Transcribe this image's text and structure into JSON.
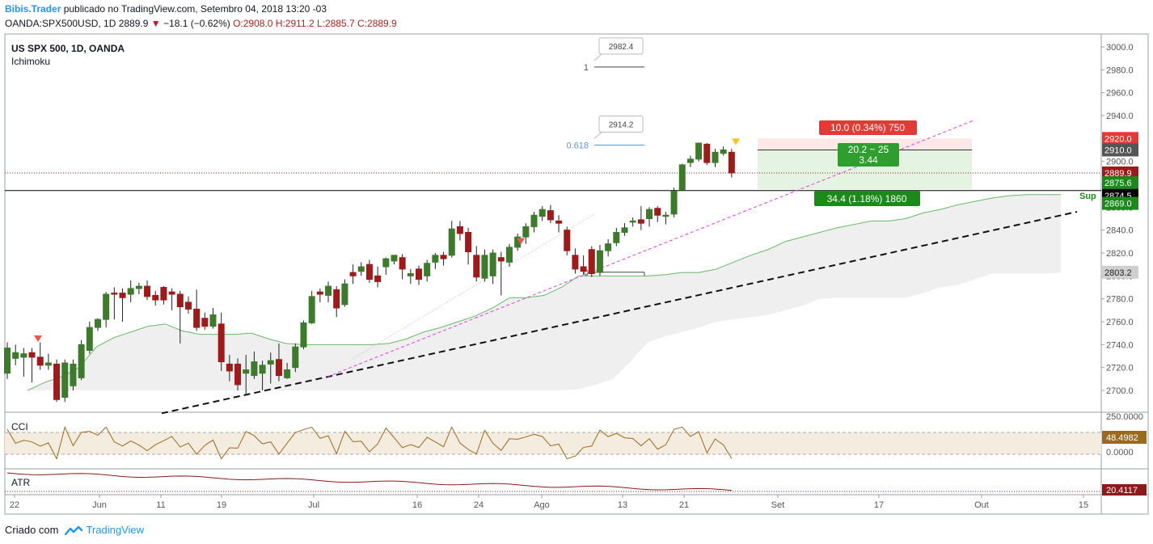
{
  "header": {
    "author": "Bibis.Trader",
    "publication": "publicado no TradingView.com, Setembro 04, 2018 13:20 -03"
  },
  "ticker": {
    "symbol": "OANDA:SPX500USD, 1D",
    "last": "2889.9",
    "change": "−18.1 (−0.62%)",
    "ohlc": "O:2908.0 H:2911.2 L:2885.7 C:2889.9"
  },
  "legend": {
    "title": "US SPX 500, 1D, OANDA",
    "indicator": "Ichimoku"
  },
  "panels": {
    "cci_label": "CCI",
    "atr_label": "ATR",
    "cci_value": "48.4982",
    "cci_axis_top": "250.0000",
    "cci_axis_mid": "0.0000",
    "atr_value": "20.4117"
  },
  "price_labels": {
    "p2920": "2920.0",
    "p2910": "2910.0",
    "p2889": "2889.9",
    "p2875": "2875.6",
    "p2874": "2874.5",
    "p2869": "2869.0",
    "p2803": "2803.2"
  },
  "fib": {
    "level_1": "1",
    "level_0618": "0.618",
    "level_0": "0",
    "box_top": "2982.4",
    "box_mid": "2914.2"
  },
  "position_tool": {
    "target": "10.0 (0.34%) 750",
    "ratio": "20.2 ~ 25",
    "ratio2": "3.44",
    "stop": "34.4 (1.18%) 1860"
  },
  "annotation": {
    "sup": "Sup"
  },
  "footer": {
    "created": "Criado com",
    "brand": "TradingView"
  },
  "colors": {
    "up": "#3d7a2c",
    "down": "#9e1b1b",
    "accent": "#2196f3"
  },
  "chart_data": {
    "type": "candlestick",
    "symbol": "US SPX 500, 1D, OANDA",
    "indicators": [
      "Ichimoku",
      "CCI",
      "ATR"
    ],
    "y_axis": {
      "ticks": [
        2700,
        2720,
        2740,
        2760,
        2780,
        2800,
        2820,
        2840,
        2860,
        2880,
        2900,
        2920,
        2940,
        2960,
        2980,
        3000
      ],
      "range": [
        2690,
        3010
      ]
    },
    "x_axis": {
      "ticks": [
        "22",
        "Jun",
        "11",
        "19",
        "Jul",
        "16",
        "24",
        "Ago",
        "13",
        "21",
        "Set",
        "17",
        "Out",
        "15"
      ]
    },
    "candles": [
      {
        "o": 2715,
        "c": 2737,
        "h": 2742,
        "l": 2710
      },
      {
        "o": 2728,
        "c": 2733,
        "h": 2740,
        "l": 2722
      },
      {
        "o": 2729,
        "c": 2732,
        "h": 2737,
        "l": 2712
      },
      {
        "o": 2733,
        "c": 2729,
        "h": 2737,
        "l": 2707
      },
      {
        "o": 2729,
        "c": 2722,
        "h": 2742,
        "l": 2718
      },
      {
        "o": 2722,
        "c": 2724,
        "h": 2732,
        "l": 2718
      },
      {
        "o": 2723,
        "c": 2692,
        "h": 2727,
        "l": 2690
      },
      {
        "o": 2694,
        "c": 2724,
        "h": 2727,
        "l": 2690
      },
      {
        "o": 2704,
        "c": 2723,
        "h": 2727,
        "l": 2700
      },
      {
        "o": 2711,
        "c": 2740,
        "h": 2744,
        "l": 2709
      },
      {
        "o": 2735,
        "c": 2755,
        "h": 2760,
        "l": 2732
      },
      {
        "o": 2755,
        "c": 2762,
        "h": 2763,
        "l": 2752
      },
      {
        "o": 2762,
        "c": 2784,
        "h": 2786,
        "l": 2755
      },
      {
        "o": 2785,
        "c": 2784,
        "h": 2790,
        "l": 2762
      },
      {
        "o": 2785,
        "c": 2781,
        "h": 2789,
        "l": 2760
      },
      {
        "o": 2784,
        "c": 2789,
        "h": 2796,
        "l": 2777
      },
      {
        "o": 2789,
        "c": 2791,
        "h": 2794,
        "l": 2784
      },
      {
        "o": 2791,
        "c": 2782,
        "h": 2796,
        "l": 2779
      },
      {
        "o": 2783,
        "c": 2779,
        "h": 2787,
        "l": 2774
      },
      {
        "o": 2790,
        "c": 2779,
        "h": 2791,
        "l": 2775
      },
      {
        "o": 2786,
        "c": 2784,
        "h": 2789,
        "l": 2770
      },
      {
        "o": 2784,
        "c": 2773,
        "h": 2787,
        "l": 2741
      },
      {
        "o": 2777,
        "c": 2771,
        "h": 2782,
        "l": 2767
      },
      {
        "o": 2771,
        "c": 2755,
        "h": 2788,
        "l": 2752
      },
      {
        "o": 2763,
        "c": 2756,
        "h": 2768,
        "l": 2753
      },
      {
        "o": 2756,
        "c": 2766,
        "h": 2772,
        "l": 2754
      },
      {
        "o": 2758,
        "c": 2725,
        "h": 2768,
        "l": 2717
      },
      {
        "o": 2723,
        "c": 2717,
        "h": 2731,
        "l": 2708
      },
      {
        "o": 2723,
        "c": 2705,
        "h": 2728,
        "l": 2700
      },
      {
        "o": 2715,
        "c": 2718,
        "h": 2731,
        "l": 2697
      },
      {
        "o": 2713,
        "c": 2725,
        "h": 2734,
        "l": 2710
      },
      {
        "o": 2715,
        "c": 2722,
        "h": 2726,
        "l": 2700
      },
      {
        "o": 2723,
        "c": 2726,
        "h": 2733,
        "l": 2706
      },
      {
        "o": 2727,
        "c": 2713,
        "h": 2741,
        "l": 2708
      },
      {
        "o": 2711,
        "c": 2718,
        "h": 2724,
        "l": 2710
      },
      {
        "o": 2720,
        "c": 2738,
        "h": 2741,
        "l": 2716
      },
      {
        "o": 2738,
        "c": 2759,
        "h": 2761,
        "l": 2736
      },
      {
        "o": 2759,
        "c": 2782,
        "h": 2787,
        "l": 2758
      },
      {
        "o": 2786,
        "c": 2784,
        "h": 2789,
        "l": 2777
      },
      {
        "o": 2783,
        "c": 2791,
        "h": 2795,
        "l": 2777
      },
      {
        "o": 2788,
        "c": 2772,
        "h": 2791,
        "l": 2764
      },
      {
        "o": 2775,
        "c": 2793,
        "h": 2797,
        "l": 2773
      },
      {
        "o": 2803,
        "c": 2800,
        "h": 2810,
        "l": 2793
      },
      {
        "o": 2804,
        "c": 2808,
        "h": 2812,
        "l": 2800
      },
      {
        "o": 2810,
        "c": 2797,
        "h": 2814,
        "l": 2794
      },
      {
        "o": 2800,
        "c": 2795,
        "h": 2808,
        "l": 2790
      },
      {
        "o": 2808,
        "c": 2815,
        "h": 2816,
        "l": 2801
      },
      {
        "o": 2813,
        "c": 2818,
        "h": 2818,
        "l": 2810
      },
      {
        "o": 2816,
        "c": 2806,
        "h": 2819,
        "l": 2797
      },
      {
        "o": 2800,
        "c": 2802,
        "h": 2806,
        "l": 2793
      },
      {
        "o": 2806,
        "c": 2797,
        "h": 2809,
        "l": 2792
      },
      {
        "o": 2800,
        "c": 2811,
        "h": 2814,
        "l": 2795
      },
      {
        "o": 2812,
        "c": 2818,
        "h": 2820,
        "l": 2806
      },
      {
        "o": 2818,
        "c": 2815,
        "h": 2821,
        "l": 2809
      },
      {
        "o": 2818,
        "c": 2841,
        "h": 2848,
        "l": 2816
      },
      {
        "o": 2843,
        "c": 2837,
        "h": 2848,
        "l": 2831
      },
      {
        "o": 2838,
        "c": 2821,
        "h": 2842,
        "l": 2810
      },
      {
        "o": 2818,
        "c": 2799,
        "h": 2826,
        "l": 2795
      },
      {
        "o": 2798,
        "c": 2818,
        "h": 2823,
        "l": 2795
      },
      {
        "o": 2800,
        "c": 2820,
        "h": 2823,
        "l": 2793
      },
      {
        "o": 2816,
        "c": 2813,
        "h": 2821,
        "l": 2783
      },
      {
        "o": 2812,
        "c": 2825,
        "h": 2828,
        "l": 2808
      },
      {
        "o": 2825,
        "c": 2834,
        "h": 2837,
        "l": 2822
      },
      {
        "o": 2834,
        "c": 2843,
        "h": 2846,
        "l": 2828
      },
      {
        "o": 2843,
        "c": 2853,
        "h": 2856,
        "l": 2838
      },
      {
        "o": 2852,
        "c": 2858,
        "h": 2861,
        "l": 2848
      },
      {
        "o": 2857,
        "c": 2849,
        "h": 2862,
        "l": 2846
      },
      {
        "o": 2848,
        "c": 2846,
        "h": 2853,
        "l": 2838
      },
      {
        "o": 2840,
        "c": 2822,
        "h": 2843,
        "l": 2818
      },
      {
        "o": 2818,
        "c": 2806,
        "h": 2824,
        "l": 2802
      },
      {
        "o": 2808,
        "c": 2804,
        "h": 2818,
        "l": 2801
      },
      {
        "o": 2823,
        "c": 2802,
        "h": 2826,
        "l": 2799
      },
      {
        "o": 2803,
        "c": 2822,
        "h": 2827,
        "l": 2800
      },
      {
        "o": 2822,
        "c": 2828,
        "h": 2832,
        "l": 2817
      },
      {
        "o": 2829,
        "c": 2838,
        "h": 2842,
        "l": 2826
      },
      {
        "o": 2838,
        "c": 2842,
        "h": 2846,
        "l": 2835
      },
      {
        "o": 2847,
        "c": 2848,
        "h": 2851,
        "l": 2843
      },
      {
        "o": 2849,
        "c": 2846,
        "h": 2861,
        "l": 2840
      },
      {
        "o": 2850,
        "c": 2858,
        "h": 2860,
        "l": 2843
      },
      {
        "o": 2859,
        "c": 2853,
        "h": 2861,
        "l": 2847
      },
      {
        "o": 2852,
        "c": 2853,
        "h": 2856,
        "l": 2845
      },
      {
        "o": 2854,
        "c": 2874,
        "h": 2877,
        "l": 2851
      },
      {
        "o": 2875,
        "c": 2897,
        "h": 2898,
        "l": 2874
      },
      {
        "o": 2899,
        "c": 2902,
        "h": 2905,
        "l": 2895
      },
      {
        "o": 2902,
        "c": 2916,
        "h": 2916,
        "l": 2900
      },
      {
        "o": 2915,
        "c": 2899,
        "h": 2916,
        "l": 2897
      },
      {
        "o": 2899,
        "c": 2908,
        "h": 2911,
        "l": 2895
      },
      {
        "o": 2907,
        "c": 2910,
        "h": 2913,
        "l": 2905
      },
      {
        "o": 2908,
        "c": 2890,
        "h": 2911,
        "l": 2886
      }
    ],
    "cloud_top": [
      2700,
      2707,
      2712,
      2720,
      2738,
      2746,
      2751,
      2756,
      2758,
      2752,
      2749,
      2749,
      2749,
      2750,
      2745,
      2741,
      2740,
      2740,
      2740,
      2740,
      2740,
      2741,
      2745,
      2751,
      2755,
      2760,
      2765,
      2772,
      2781,
      2781,
      2783,
      2790,
      2800,
      2800,
      2800,
      2800,
      2800,
      2801,
      2803,
      2803,
      2806,
      2812,
      2818,
      2823,
      2830,
      2834,
      2838,
      2842,
      2845,
      2848,
      2848,
      2850,
      2855,
      2858,
      2862,
      2865,
      2868,
      2870,
      2871,
      2871,
      2871
    ],
    "cloud_bottom": [
      2700,
      2700,
      2700,
      2700,
      2700,
      2700,
      2700,
      2700,
      2700,
      2700,
      2700,
      2700,
      2700,
      2700,
      2700,
      2700,
      2700,
      2700,
      2700,
      2700,
      2700,
      2700,
      2700,
      2700,
      2700,
      2700,
      2700,
      2700,
      2700,
      2700,
      2700,
      2700,
      2701,
      2705,
      2710,
      2725,
      2742,
      2747,
      2751,
      2755,
      2760,
      2762,
      2764,
      2766,
      2770,
      2774,
      2780,
      2781,
      2781,
      2781,
      2781,
      2781,
      2785,
      2790,
      2792,
      2797,
      2802,
      2802,
      2802,
      2802,
      2803
    ],
    "fibonacci": {
      "levels": [
        {
          "ratio": 1,
          "price": 2982.4
        },
        {
          "ratio": 0.618,
          "price": 2914.2
        },
        {
          "ratio": 0,
          "price": 2803.2
        }
      ]
    },
    "long_position": {
      "entry": 2910.0,
      "target": 2920.0,
      "stop": 2875.6,
      "ratio": "20.2 ~ 25",
      "rr": 3.44
    },
    "horizontal_lines": [
      2889.9,
      2874.5
    ],
    "cci": {
      "last": 48.4982,
      "band": [
        100,
        -100
      ]
    },
    "atr": {
      "last": 20.4117
    }
  }
}
